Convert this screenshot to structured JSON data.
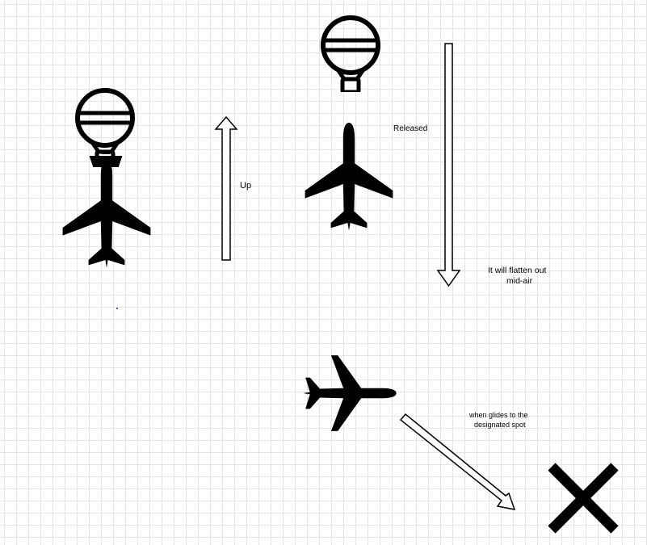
{
  "labels": {
    "up": "Up",
    "released": "Released",
    "flatten_line1": "It will flatten out",
    "flatten_line2": "mid-air",
    "glide_line1": "when glides to the",
    "glide_line2": "designated spot"
  },
  "colors": {
    "ink": "#000000",
    "grid": "#e4e4e4",
    "background": "#ffffff",
    "dot": "#2222aa"
  },
  "icons": {
    "balloon": "hot-air-balloon-icon",
    "airplane": "airplane-icon",
    "target": "x-mark-icon"
  }
}
